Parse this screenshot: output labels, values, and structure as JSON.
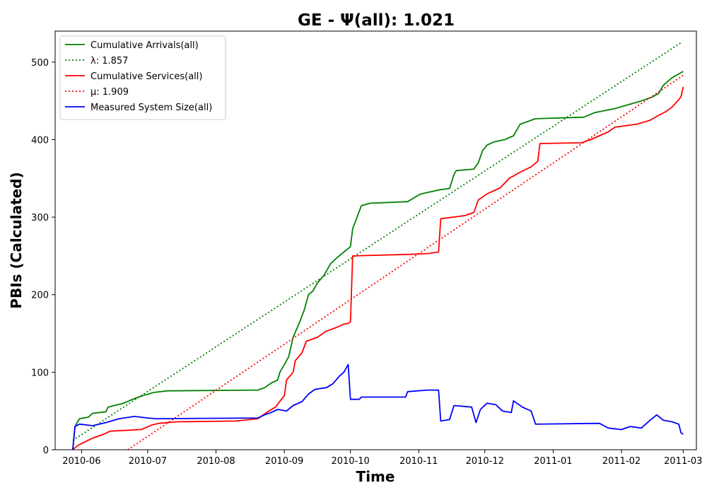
{
  "chart_data": {
    "type": "line",
    "title": "GE -  Ψ(all): 1.021",
    "xlabel": "Time",
    "ylabel": "PBIs (Calculated)",
    "x_range": [
      "2010-05-20",
      "2011-03-07"
    ],
    "ylim": [
      0,
      540
    ],
    "x_ticks": [
      "2010-06",
      "2010-07",
      "2010-08",
      "2010-09",
      "2010-10",
      "2010-11",
      "2010-12",
      "2011-01",
      "2011-02",
      "2011-03"
    ],
    "y_ticks": [
      0,
      100,
      200,
      300,
      400,
      500
    ],
    "grid": false,
    "legend_position": "top-left",
    "series": [
      {
        "name": "Cumulative Arrivals(all)",
        "style": "solid",
        "color": "#008000",
        "points": [
          [
            "2010-05-28",
            0
          ],
          [
            "2010-05-29",
            30
          ],
          [
            "2010-05-31",
            40
          ],
          [
            "2010-06-04",
            42
          ],
          [
            "2010-06-06",
            47
          ],
          [
            "2010-06-12",
            49
          ],
          [
            "2010-06-13",
            55
          ],
          [
            "2010-06-20",
            60
          ],
          [
            "2010-06-25",
            66
          ],
          [
            "2010-06-30",
            71
          ],
          [
            "2010-07-04",
            74
          ],
          [
            "2010-07-10",
            76
          ],
          [
            "2010-08-20",
            77
          ],
          [
            "2010-08-23",
            80
          ],
          [
            "2010-08-26",
            86
          ],
          [
            "2010-08-29",
            90
          ],
          [
            "2010-08-30",
            100
          ],
          [
            "2010-09-01",
            110
          ],
          [
            "2010-09-03",
            120
          ],
          [
            "2010-09-05",
            145
          ],
          [
            "2010-09-08",
            165
          ],
          [
            "2010-09-10",
            180
          ],
          [
            "2010-09-12",
            200
          ],
          [
            "2010-09-14",
            205
          ],
          [
            "2010-09-16",
            215
          ],
          [
            "2010-09-19",
            225
          ],
          [
            "2010-09-22",
            240
          ],
          [
            "2010-09-25",
            248
          ],
          [
            "2010-09-28",
            255
          ],
          [
            "2010-10-01",
            262
          ],
          [
            "2010-10-02",
            285
          ],
          [
            "2010-10-04",
            300
          ],
          [
            "2010-10-06",
            315
          ],
          [
            "2010-10-10",
            318
          ],
          [
            "2010-10-27",
            320
          ],
          [
            "2010-10-31",
            327
          ],
          [
            "2010-11-02",
            330
          ],
          [
            "2010-11-10",
            335
          ],
          [
            "2010-11-15",
            337
          ],
          [
            "2010-11-17",
            355
          ],
          [
            "2010-11-18",
            360
          ],
          [
            "2010-11-26",
            362
          ],
          [
            "2010-11-28",
            370
          ],
          [
            "2010-11-30",
            386
          ],
          [
            "2010-12-02",
            393
          ],
          [
            "2010-12-05",
            397
          ],
          [
            "2010-12-10",
            400
          ],
          [
            "2010-12-14",
            405
          ],
          [
            "2010-12-17",
            420
          ],
          [
            "2010-12-24",
            427
          ],
          [
            "2011-01-15",
            429
          ],
          [
            "2011-01-20",
            435
          ],
          [
            "2011-01-29",
            440
          ],
          [
            "2011-02-04",
            445
          ],
          [
            "2011-02-10",
            450
          ],
          [
            "2011-02-15",
            455
          ],
          [
            "2011-02-18",
            460
          ],
          [
            "2011-02-20",
            470
          ],
          [
            "2011-02-24",
            480
          ],
          [
            "2011-03-01",
            488
          ]
        ]
      },
      {
        "name": "λ: 1.857",
        "style": "dotted",
        "color": "#008000",
        "points": [
          [
            "2010-05-28",
            12
          ],
          [
            "2011-02-28",
            525
          ]
        ]
      },
      {
        "name": "Cumulative Services(all)",
        "style": "solid",
        "color": "#ff0000",
        "points": [
          [
            "2010-05-28",
            0
          ],
          [
            "2010-05-30",
            5
          ],
          [
            "2010-06-01",
            8
          ],
          [
            "2010-06-06",
            15
          ],
          [
            "2010-06-11",
            20
          ],
          [
            "2010-06-14",
            24
          ],
          [
            "2010-06-28",
            26
          ],
          [
            "2010-07-03",
            32
          ],
          [
            "2010-07-06",
            34
          ],
          [
            "2010-07-14",
            36
          ],
          [
            "2010-08-10",
            37
          ],
          [
            "2010-08-20",
            40
          ],
          [
            "2010-08-25",
            50
          ],
          [
            "2010-08-28",
            55
          ],
          [
            "2010-09-01",
            70
          ],
          [
            "2010-09-02",
            90
          ],
          [
            "2010-09-05",
            100
          ],
          [
            "2010-09-06",
            115
          ],
          [
            "2010-09-09",
            125
          ],
          [
            "2010-09-11",
            140
          ],
          [
            "2010-09-16",
            145
          ],
          [
            "2010-09-20",
            153
          ],
          [
            "2010-09-24",
            157
          ],
          [
            "2010-09-28",
            162
          ],
          [
            "2010-09-30",
            163
          ],
          [
            "2010-10-01",
            165
          ],
          [
            "2010-10-02",
            250
          ],
          [
            "2010-10-28",
            252
          ],
          [
            "2010-11-05",
            253
          ],
          [
            "2010-11-10",
            255
          ],
          [
            "2010-11-11",
            298
          ],
          [
            "2010-11-22",
            302
          ],
          [
            "2010-11-26",
            306
          ],
          [
            "2010-11-28",
            322
          ],
          [
            "2010-12-02",
            330
          ],
          [
            "2010-12-08",
            338
          ],
          [
            "2010-12-12",
            350
          ],
          [
            "2010-12-17",
            358
          ],
          [
            "2010-12-22",
            365
          ],
          [
            "2010-12-25",
            372
          ],
          [
            "2010-12-26",
            395
          ],
          [
            "2011-01-14",
            396
          ],
          [
            "2011-01-18",
            400
          ],
          [
            "2011-01-22",
            405
          ],
          [
            "2011-01-26",
            410
          ],
          [
            "2011-01-29",
            416
          ],
          [
            "2011-02-08",
            420
          ],
          [
            "2011-02-14",
            425
          ],
          [
            "2011-02-17",
            430
          ],
          [
            "2011-02-21",
            436
          ],
          [
            "2011-02-24",
            442
          ],
          [
            "2011-02-28",
            455
          ],
          [
            "2011-03-01",
            468
          ]
        ]
      },
      {
        "name": "μ: 1.909",
        "style": "dotted",
        "color": "#ff0000",
        "points": [
          [
            "2010-06-22",
            0
          ],
          [
            "2011-03-01",
            483
          ]
        ]
      },
      {
        "name": "Measured System Size(all)",
        "style": "solid",
        "color": "#0000ff",
        "points": [
          [
            "2010-05-28",
            0
          ],
          [
            "2010-05-29",
            30
          ],
          [
            "2010-05-31",
            33
          ],
          [
            "2010-06-06",
            31
          ],
          [
            "2010-06-12",
            35
          ],
          [
            "2010-06-18",
            40
          ],
          [
            "2010-06-25",
            43
          ],
          [
            "2010-07-01",
            41
          ],
          [
            "2010-07-05",
            40
          ],
          [
            "2010-08-20",
            41
          ],
          [
            "2010-08-23",
            45
          ],
          [
            "2010-08-26",
            48
          ],
          [
            "2010-08-29",
            52
          ],
          [
            "2010-09-02",
            50
          ],
          [
            "2010-09-05",
            57
          ],
          [
            "2010-09-09",
            62
          ],
          [
            "2010-09-12",
            72
          ],
          [
            "2010-09-15",
            78
          ],
          [
            "2010-09-20",
            80
          ],
          [
            "2010-09-23",
            85
          ],
          [
            "2010-09-26",
            95
          ],
          [
            "2010-09-28",
            100
          ],
          [
            "2010-09-30",
            110
          ],
          [
            "2010-10-01",
            65
          ],
          [
            "2010-10-05",
            65
          ],
          [
            "2010-10-06",
            68
          ],
          [
            "2010-10-26",
            68
          ],
          [
            "2010-10-27",
            75
          ],
          [
            "2010-11-05",
            77
          ],
          [
            "2010-11-10",
            77
          ],
          [
            "2010-11-11",
            37
          ],
          [
            "2010-11-15",
            39
          ],
          [
            "2010-11-17",
            57
          ],
          [
            "2010-11-25",
            55
          ],
          [
            "2010-11-27",
            35
          ],
          [
            "2010-11-29",
            52
          ],
          [
            "2010-12-02",
            60
          ],
          [
            "2010-12-06",
            58
          ],
          [
            "2010-12-09",
            50
          ],
          [
            "2010-12-13",
            48
          ],
          [
            "2010-12-14",
            63
          ],
          [
            "2010-12-18",
            55
          ],
          [
            "2010-12-22",
            50
          ],
          [
            "2010-12-24",
            33
          ],
          [
            "2011-01-22",
            34
          ],
          [
            "2011-01-26",
            28
          ],
          [
            "2011-02-01",
            26
          ],
          [
            "2011-02-05",
            30
          ],
          [
            "2011-02-10",
            28
          ],
          [
            "2011-02-14",
            38
          ],
          [
            "2011-02-17",
            45
          ],
          [
            "2011-02-20",
            38
          ],
          [
            "2011-02-24",
            36
          ],
          [
            "2011-02-27",
            33
          ],
          [
            "2011-02-28",
            22
          ],
          [
            "2011-03-01",
            20
          ]
        ]
      }
    ]
  }
}
